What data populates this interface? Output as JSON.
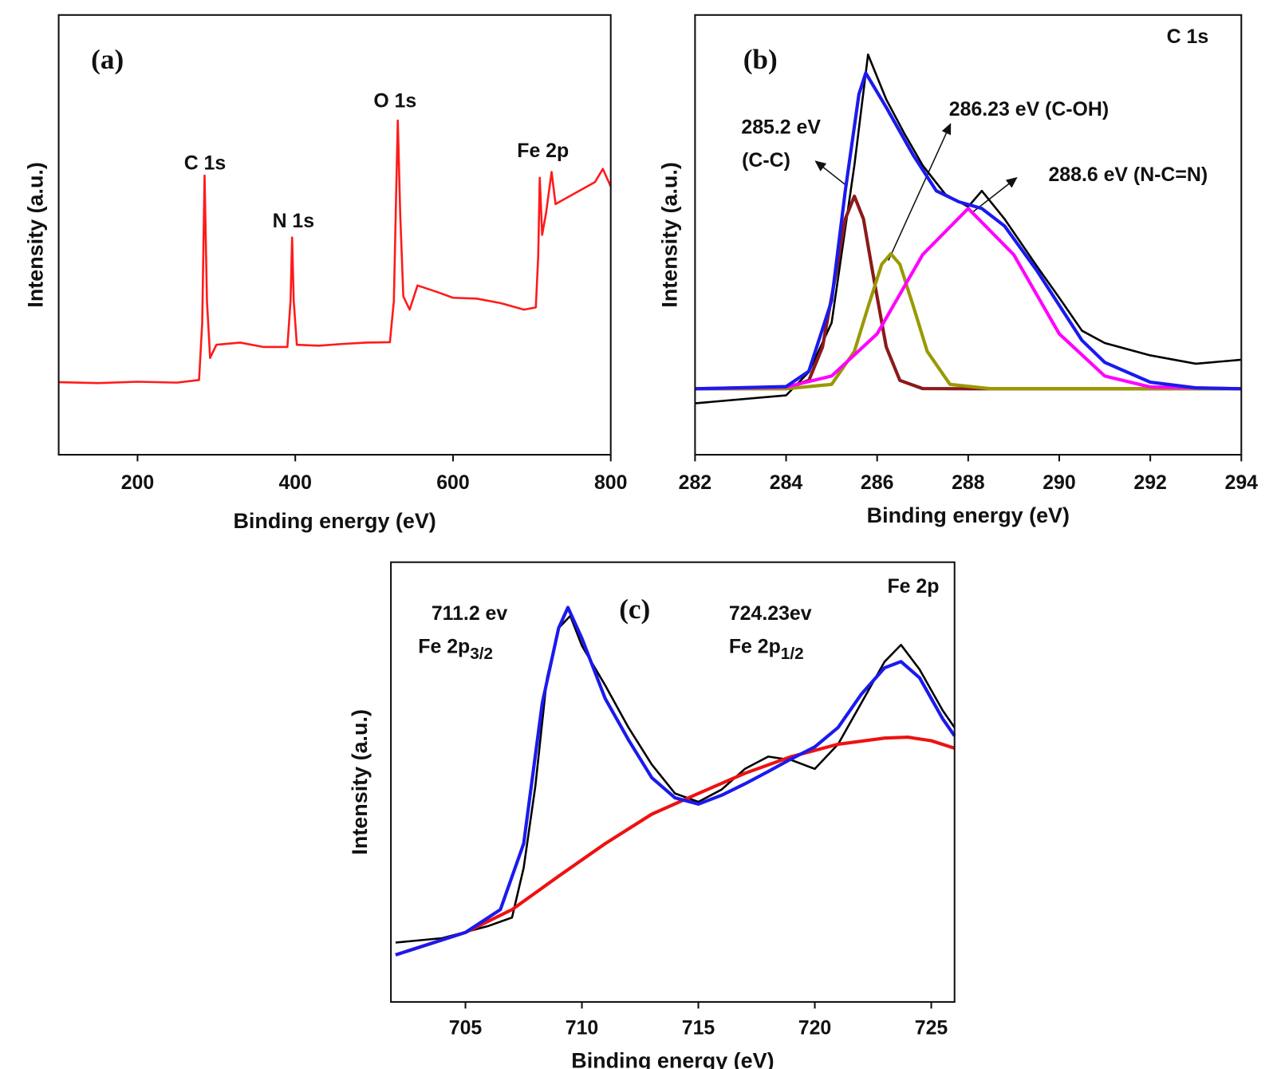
{
  "chart_data": [
    {
      "type": "line",
      "panel_label": "(a)",
      "xlabel": "Binding energy (eV)",
      "ylabel": "Intensity (a.u.)",
      "xlim": [
        100,
        800
      ],
      "xticks": [
        200,
        400,
        600,
        800
      ],
      "ylim": [
        0,
        100
      ],
      "annotations": [
        {
          "text": "C 1s"
        },
        {
          "text": "N 1s"
        },
        {
          "text": "O 1s"
        },
        {
          "text": "Fe 2p"
        }
      ],
      "series": [
        {
          "color": "#ff1a1a",
          "x": [
            100,
            150,
            200,
            250,
            278,
            282,
            285,
            288,
            292,
            300,
            330,
            360,
            390,
            394,
            396,
            398,
            402,
            430,
            460,
            490,
            520,
            525,
            528,
            530,
            533,
            537,
            545,
            555,
            580,
            600,
            630,
            660,
            690,
            705,
            708,
            710,
            713,
            718,
            725,
            730,
            740,
            760,
            780,
            790,
            800
          ],
          "values": [
            16.5,
            16.3,
            16.6,
            16.4,
            17,
            30,
            63.5,
            35,
            22,
            25,
            25.5,
            24.5,
            24.5,
            35,
            49.4,
            35,
            25,
            24.8,
            25.2,
            25.5,
            25.6,
            35,
            60,
            76,
            55,
            36,
            33,
            38.5,
            37,
            35.7,
            35.5,
            34.5,
            33,
            33.5,
            45,
            63,
            50,
            55,
            64.3,
            57,
            58,
            60,
            62,
            65,
            61
          ]
        }
      ]
    },
    {
      "type": "line",
      "panel_label": "(b)",
      "xlabel": "Binding energy (eV)",
      "ylabel": "Intensity (a.u.)",
      "xlim": [
        282,
        294
      ],
      "xticks": [
        282,
        284,
        286,
        288,
        290,
        292,
        294
      ],
      "ylim": [
        0,
        100
      ],
      "annotations": [
        {
          "text": "C 1s"
        },
        {
          "text": "285.2 eV"
        },
        {
          "text": "(C-C)"
        },
        {
          "text": "286.23 eV (C-OH)"
        },
        {
          "text": "288.6 eV (N-C=N)"
        }
      ],
      "series": [
        {
          "color": "#000000",
          "x": [
            282,
            284,
            284.5,
            285,
            285.5,
            285.8,
            286.2,
            286.6,
            287,
            287.5,
            288,
            288.3,
            288.8,
            289.5,
            290,
            290.5,
            291,
            292,
            293,
            294
          ],
          "values": [
            11.7,
            13.5,
            18.8,
            30,
            65.8,
            91,
            80.8,
            73,
            65.8,
            59.2,
            56.4,
            60,
            53.6,
            43,
            35.7,
            28.2,
            25.4,
            22.6,
            20.7,
            21.6
          ]
        },
        {
          "color": "#8b1a1a",
          "x": [
            282,
            284,
            284.5,
            284.8,
            285.1,
            285.3,
            285.5,
            285.7,
            285.9,
            286.2,
            286.5,
            287,
            288,
            294
          ],
          "values": [
            15,
            15.04,
            16.9,
            24.5,
            41.6,
            53.6,
            58.8,
            53.6,
            41.6,
            24.5,
            16.9,
            15.04,
            15,
            15
          ]
        },
        {
          "color": "#999900",
          "x": [
            282,
            284,
            285,
            285.5,
            285.8,
            286.1,
            286.3,
            286.5,
            286.8,
            287.1,
            287.6,
            288.5,
            294
          ],
          "values": [
            15,
            15,
            16,
            23.5,
            33.6,
            43.3,
            45.7,
            43.3,
            33.6,
            23.5,
            16,
            15,
            15
          ]
        },
        {
          "color": "#ff00ff",
          "x": [
            282,
            284,
            285,
            286,
            287,
            288,
            289,
            290,
            291,
            292,
            294
          ],
          "values": [
            15,
            15.4,
            17.9,
            27.5,
            45.5,
            56,
            45.5,
            27.5,
            17.9,
            15.4,
            15
          ]
        },
        {
          "color": "#1a1aee",
          "x": [
            282,
            284,
            284.5,
            285,
            285.3,
            285.6,
            285.75,
            286.2,
            286.8,
            287.3,
            287.8,
            288.3,
            288.8,
            289.5,
            290,
            290.5,
            291,
            292,
            293,
            294
          ],
          "values": [
            15,
            15.5,
            19,
            35,
            60,
            82,
            86.8,
            79,
            68,
            60,
            57.5,
            56,
            52,
            42,
            34,
            26,
            21,
            16.5,
            15.2,
            15
          ]
        }
      ]
    },
    {
      "type": "line",
      "panel_label": "(c)",
      "xlabel": "Binding energy (eV)",
      "ylabel": "Intensity (a.u.)",
      "xlim": [
        701.8,
        726
      ],
      "xticks": [
        705,
        710,
        715,
        720,
        725
      ],
      "ylim": [
        0,
        100
      ],
      "annotations": [
        {
          "text": "Fe 2p"
        },
        {
          "text": "711.2 ev"
        },
        {
          "text": "Fe 2p",
          "sub": "3/2"
        },
        {
          "text": "724.23ev"
        },
        {
          "text": "Fe 2p",
          "sub": "1/2"
        }
      ],
      "series": [
        {
          "color": "#000000",
          "x": [
            702,
            704,
            706,
            707,
            707.5,
            708,
            708.5,
            709,
            709.5,
            710,
            711,
            712,
            713,
            714,
            715,
            716,
            717,
            718,
            719,
            720,
            721,
            722,
            723,
            723.7,
            724.5,
            725.5,
            726
          ],
          "values": [
            13.5,
            14.5,
            17.3,
            19.2,
            30.5,
            49,
            73.7,
            85,
            87.8,
            81,
            72,
            62.4,
            54,
            47.4,
            45.5,
            48.3,
            53,
            55.8,
            55,
            53,
            58.6,
            68,
            77.4,
            81.2,
            75.6,
            66.2,
            62.4
          ]
        },
        {
          "color": "#ee1111",
          "x": [
            702,
            705,
            707,
            709,
            711,
            713,
            715,
            717,
            719,
            721,
            723,
            724,
            725,
            726
          ],
          "values": [
            10.7,
            15.8,
            21,
            28.6,
            36,
            42.7,
            47.4,
            52,
            55.8,
            58.6,
            60,
            60.2,
            59.4,
            57.7
          ]
        },
        {
          "color": "#1a1aee",
          "x": [
            702,
            705,
            706.5,
            707.5,
            708.3,
            709,
            709.4,
            710,
            711,
            712,
            713,
            714,
            715,
            716,
            717,
            718,
            719,
            720,
            721,
            722,
            723,
            723.7,
            724.5,
            725.5,
            726
          ],
          "values": [
            10.7,
            15.8,
            21,
            36,
            68,
            85,
            89.7,
            82.7,
            69,
            59.6,
            51,
            46.4,
            45,
            47,
            49.6,
            52.4,
            55.3,
            58,
            62.4,
            70,
            76,
            77.4,
            73.7,
            64.3,
            60.5
          ]
        }
      ]
    }
  ]
}
